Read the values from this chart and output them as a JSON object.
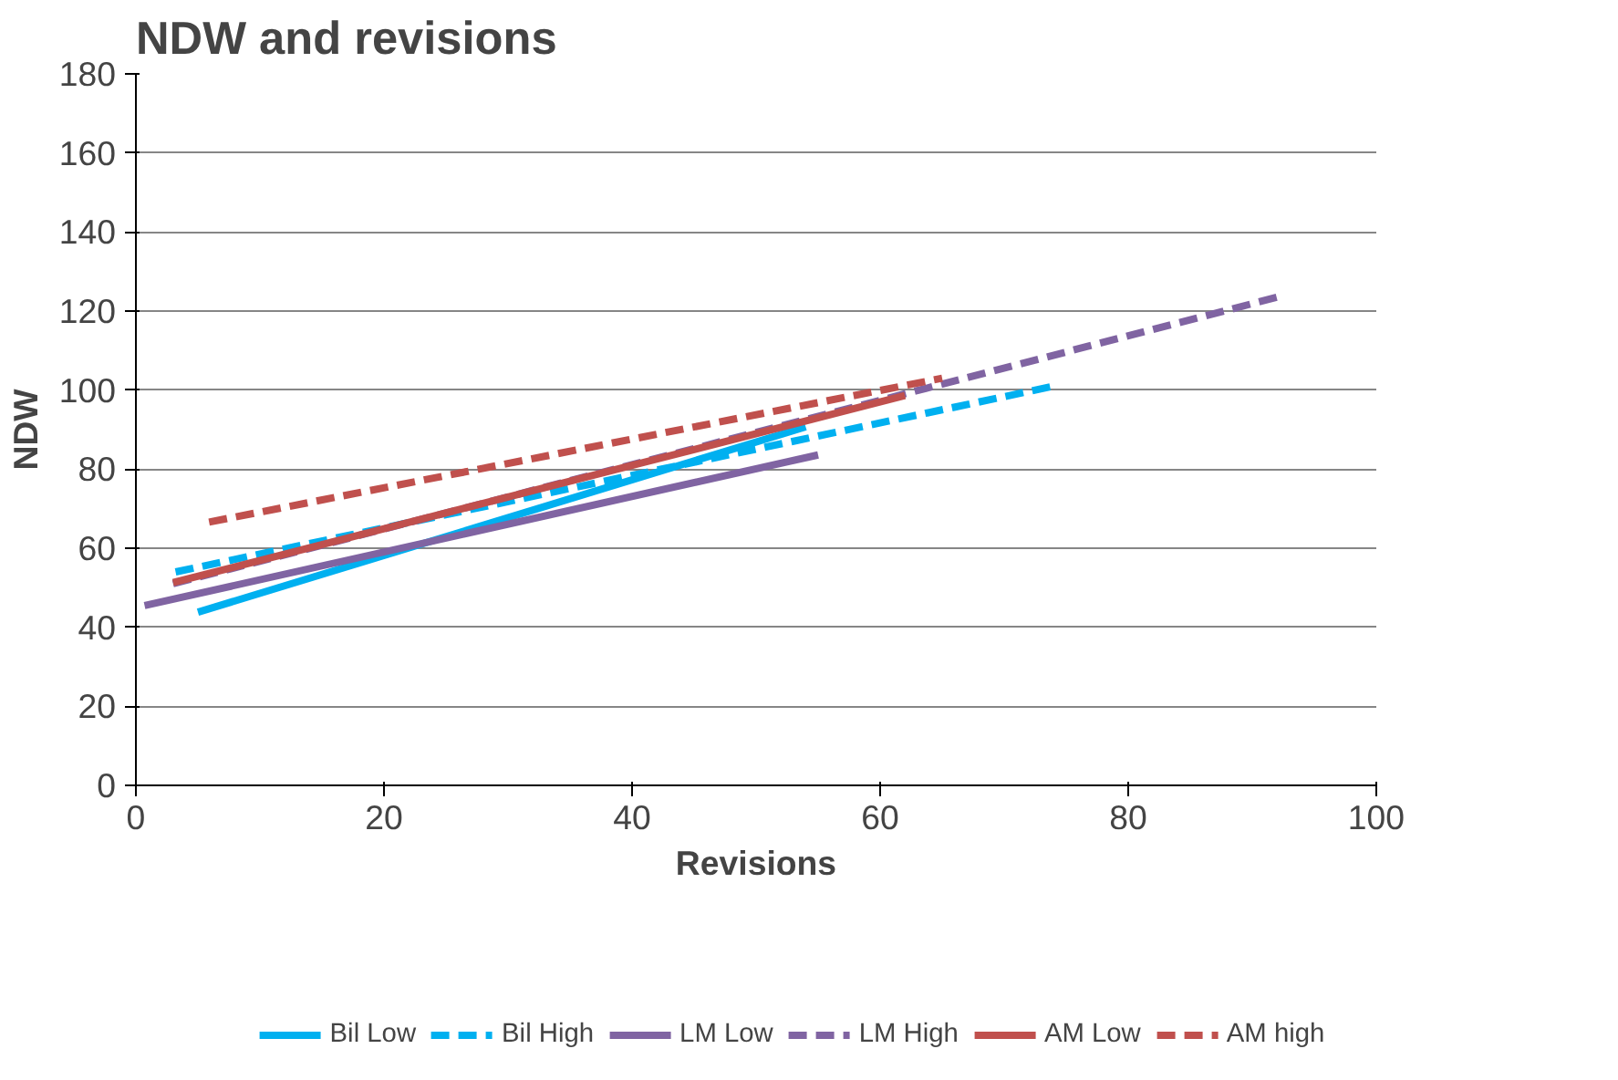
{
  "chart_data": {
    "type": "line",
    "title": "NDW and revisions",
    "xlabel": "Revisions",
    "ylabel": "NDW",
    "xlim": [
      0,
      100
    ],
    "xticks": [
      0,
      20,
      40,
      60,
      80,
      100
    ],
    "ylim": [
      0,
      180
    ],
    "yticks": [
      0,
      20,
      40,
      60,
      80,
      100,
      120,
      140,
      160,
      180
    ],
    "grid": "y",
    "legend": "bottom",
    "marker": "none",
    "series": [
      {
        "name": "Bil Low",
        "color": "#00b0f0",
        "line_style": "solid",
        "x": [
          5,
          54
        ],
        "values": [
          43.8,
          90.7
        ]
      },
      {
        "name": "Bil High",
        "color": "#00b0f0",
        "line_style": "dashed",
        "x": [
          3.2,
          74
        ],
        "values": [
          54,
          101
        ]
      },
      {
        "name": "LM Low",
        "color": "#8064a2",
        "line_style": "solid",
        "x": [
          0.7,
          55
        ],
        "values": [
          45.5,
          83.6
        ]
      },
      {
        "name": "LM High",
        "color": "#8064a2",
        "line_style": "dashed",
        "x": [
          3,
          92
        ],
        "values": [
          51,
          123.5
        ]
      },
      {
        "name": "AM Low",
        "color": "#c0504d",
        "line_style": "solid",
        "x": [
          3,
          62
        ],
        "values": [
          51.3,
          98.6
        ]
      },
      {
        "name": "AM high",
        "color": "#c0504d",
        "line_style": "dashed",
        "x": [
          5.9,
          65
        ],
        "values": [
          66.6,
          103
        ]
      }
    ]
  }
}
